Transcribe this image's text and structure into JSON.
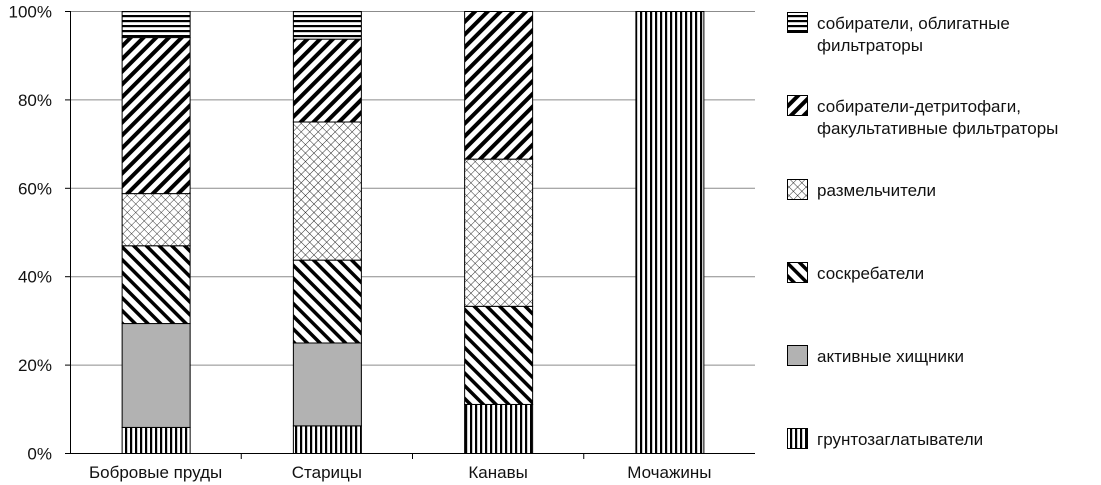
{
  "chart_data": {
    "type": "bar",
    "stacked": true,
    "title": "",
    "xlabel": "",
    "ylabel": "",
    "ylim": [
      0,
      100
    ],
    "yticks": [
      "0%",
      "20%",
      "40%",
      "60%",
      "80%",
      "100%"
    ],
    "grid": true,
    "legend_placement": "right",
    "categories": [
      "Бобровые пруды",
      "Старицы",
      "Канавы",
      "Мочажины"
    ],
    "series": [
      {
        "name": "грунтозаглатыватели",
        "pattern": "vertical",
        "values": [
          5.9,
          6.25,
          11.1,
          100
        ]
      },
      {
        "name": "активные хищники",
        "pattern": "solid-gray",
        "values": [
          23.5,
          18.75,
          0,
          0
        ]
      },
      {
        "name": "соскребатели",
        "pattern": "diag-down-wide",
        "values": [
          17.6,
          18.75,
          22.2,
          0
        ]
      },
      {
        "name": "размельчители",
        "pattern": "crosshatch",
        "values": [
          11.8,
          31.25,
          33.3,
          0
        ]
      },
      {
        "name": "собиратели-детритофаги, факультативные фильтраторы",
        "name_lines": [
          "собиратели-детритофаги,",
          "факультативные фильтраторы"
        ],
        "pattern": "diag-up",
        "values": [
          35.3,
          18.75,
          33.4,
          0
        ]
      },
      {
        "name": "собиратели, облигатные фильтраторы",
        "name_lines": [
          "собиратели, облигатные",
          "фильтраторы"
        ],
        "pattern": "horizontal",
        "values": [
          5.9,
          6.25,
          0,
          0
        ]
      }
    ]
  }
}
